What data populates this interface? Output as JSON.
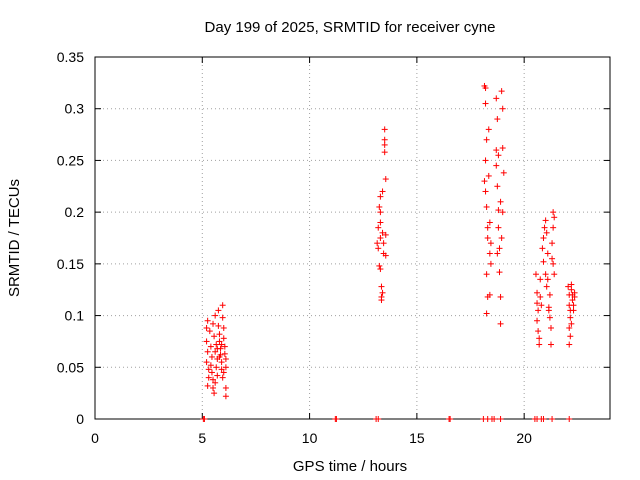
{
  "chart_data": {
    "type": "scatter",
    "title": "Day 199 of 2025, SRMTID for receiver cyne",
    "xlabel": "GPS time / hours",
    "ylabel": "SRMTID / TECUs",
    "xlim": [
      0,
      24
    ],
    "ylim": [
      0,
      0.35
    ],
    "xticks": [
      0,
      5,
      10,
      15,
      20
    ],
    "yticks": [
      0,
      0.05,
      0.1,
      0.15,
      0.2,
      0.25,
      0.3,
      0.35
    ],
    "xtick_labels": [
      "0",
      "5",
      "10",
      "15",
      "20"
    ],
    "ytick_labels": [
      "0",
      "0.05",
      "0.1",
      "0.15",
      "0.2",
      "0.25",
      "0.3",
      "0.35"
    ],
    "grid": true,
    "marker": "+",
    "color": "#ff0000",
    "series": [
      {
        "name": "SRMTID",
        "points": [
          [
            5.05,
            0
          ],
          [
            5.1,
            0
          ],
          [
            11.2,
            0
          ],
          [
            11.25,
            0
          ],
          [
            13.1,
            0
          ],
          [
            13.2,
            0
          ],
          [
            16.5,
            0
          ],
          [
            16.55,
            0
          ],
          [
            18.1,
            0
          ],
          [
            18.3,
            0
          ],
          [
            18.5,
            0
          ],
          [
            18.6,
            0
          ],
          [
            18.9,
            0
          ],
          [
            20.5,
            0
          ],
          [
            20.6,
            0
          ],
          [
            20.8,
            0
          ],
          [
            20.9,
            0
          ],
          [
            21.3,
            0
          ],
          [
            22.1,
            0
          ],
          [
            5.2,
            0.088
          ],
          [
            5.25,
            0.095
          ],
          [
            5.2,
            0.075
          ],
          [
            5.25,
            0.065
          ],
          [
            5.2,
            0.055
          ],
          [
            5.3,
            0.048
          ],
          [
            5.3,
            0.04
          ],
          [
            5.25,
            0.032
          ],
          [
            5.35,
            0.085
          ],
          [
            5.4,
            0.07
          ],
          [
            5.45,
            0.06
          ],
          [
            5.4,
            0.052
          ],
          [
            5.45,
            0.045
          ],
          [
            5.5,
            0.038
          ],
          [
            5.5,
            0.03
          ],
          [
            5.55,
            0.025
          ],
          [
            5.5,
            0.092
          ],
          [
            5.55,
            0.08
          ],
          [
            5.6,
            0.1
          ],
          [
            5.65,
            0.072
          ],
          [
            5.6,
            0.065
          ],
          [
            5.7,
            0.058
          ],
          [
            5.65,
            0.05
          ],
          [
            5.7,
            0.042
          ],
          [
            5.75,
            0.105
          ],
          [
            5.75,
            0.09
          ],
          [
            5.8,
            0.082
          ],
          [
            5.8,
            0.075
          ],
          [
            5.85,
            0.068
          ],
          [
            5.85,
            0.062
          ],
          [
            5.9,
            0.055
          ],
          [
            5.9,
            0.048
          ],
          [
            5.95,
            0.11
          ],
          [
            5.95,
            0.098
          ],
          [
            6.0,
            0.088
          ],
          [
            6.0,
            0.078
          ],
          [
            6.05,
            0.07
          ],
          [
            6.05,
            0.063
          ],
          [
            6.1,
            0.058
          ],
          [
            6.1,
            0.05
          ],
          [
            6.1,
            0.03
          ],
          [
            6.1,
            0.022
          ],
          [
            5.95,
            0.04
          ],
          [
            6.0,
            0.045
          ],
          [
            5.6,
            0.035
          ],
          [
            5.7,
            0.068
          ],
          [
            5.8,
            0.06
          ],
          [
            5.9,
            0.072
          ],
          [
            13.15,
            0.17
          ],
          [
            13.2,
            0.185
          ],
          [
            13.2,
            0.165
          ],
          [
            13.25,
            0.148
          ],
          [
            13.25,
            0.205
          ],
          [
            13.3,
            0.215
          ],
          [
            13.3,
            0.175
          ],
          [
            13.3,
            0.2
          ],
          [
            13.3,
            0.145
          ],
          [
            13.35,
            0.128
          ],
          [
            13.35,
            0.118
          ],
          [
            13.35,
            0.115
          ],
          [
            13.4,
            0.22
          ],
          [
            13.4,
            0.18
          ],
          [
            13.45,
            0.16
          ],
          [
            13.45,
            0.17
          ],
          [
            13.5,
            0.265
          ],
          [
            13.5,
            0.27
          ],
          [
            13.5,
            0.258
          ],
          [
            13.5,
            0.28
          ],
          [
            13.55,
            0.232
          ],
          [
            13.55,
            0.178
          ],
          [
            13.55,
            0.158
          ],
          [
            13.4,
            0.122
          ],
          [
            13.3,
            0.19
          ],
          [
            18.15,
            0.322
          ],
          [
            18.2,
            0.32
          ],
          [
            18.2,
            0.305
          ],
          [
            18.25,
            0.27
          ],
          [
            18.2,
            0.25
          ],
          [
            18.15,
            0.23
          ],
          [
            18.2,
            0.22
          ],
          [
            18.25,
            0.205
          ],
          [
            18.3,
            0.185
          ],
          [
            18.3,
            0.175
          ],
          [
            18.25,
            0.14
          ],
          [
            18.3,
            0.118
          ],
          [
            18.25,
            0.102
          ],
          [
            18.35,
            0.28
          ],
          [
            18.35,
            0.235
          ],
          [
            18.4,
            0.19
          ],
          [
            18.45,
            0.17
          ],
          [
            18.4,
            0.16
          ],
          [
            18.45,
            0.15
          ],
          [
            18.4,
            0.12
          ],
          [
            18.7,
            0.31
          ],
          [
            18.75,
            0.29
          ],
          [
            18.7,
            0.26
          ],
          [
            18.75,
            0.225
          ],
          [
            18.8,
            0.202
          ],
          [
            18.8,
            0.185
          ],
          [
            18.85,
            0.165
          ],
          [
            18.85,
            0.142
          ],
          [
            18.9,
            0.118
          ],
          [
            18.9,
            0.092
          ],
          [
            18.95,
            0.317
          ],
          [
            19.0,
            0.3
          ],
          [
            19.0,
            0.262
          ],
          [
            19.05,
            0.238
          ],
          [
            19.0,
            0.2
          ],
          [
            18.8,
            0.255
          ],
          [
            18.9,
            0.21
          ],
          [
            18.95,
            0.175
          ],
          [
            18.7,
            0.245
          ],
          [
            18.75,
            0.16
          ],
          [
            20.55,
            0.14
          ],
          [
            20.6,
            0.122
          ],
          [
            20.6,
            0.112
          ],
          [
            20.65,
            0.105
          ],
          [
            20.6,
            0.095
          ],
          [
            20.65,
            0.085
          ],
          [
            20.7,
            0.078
          ],
          [
            20.7,
            0.072
          ],
          [
            20.75,
            0.118
          ],
          [
            20.75,
            0.135
          ],
          [
            20.8,
            0.11
          ],
          [
            20.85,
            0.165
          ],
          [
            20.9,
            0.152
          ],
          [
            20.9,
            0.175
          ],
          [
            20.95,
            0.185
          ],
          [
            21.0,
            0.192
          ],
          [
            21.05,
            0.18
          ],
          [
            21.0,
            0.14
          ],
          [
            21.05,
            0.128
          ],
          [
            21.1,
            0.135
          ],
          [
            21.15,
            0.108
          ],
          [
            21.15,
            0.105
          ],
          [
            21.2,
            0.098
          ],
          [
            21.25,
            0.088
          ],
          [
            21.25,
            0.072
          ],
          [
            21.3,
            0.155
          ],
          [
            21.3,
            0.17
          ],
          [
            21.35,
            0.185
          ],
          [
            21.35,
            0.2
          ],
          [
            21.4,
            0.195
          ],
          [
            21.35,
            0.15
          ],
          [
            21.4,
            0.14
          ],
          [
            21.2,
            0.12
          ],
          [
            21.1,
            0.16
          ],
          [
            22.05,
            0.128
          ],
          [
            22.1,
            0.12
          ],
          [
            22.1,
            0.11
          ],
          [
            22.15,
            0.105
          ],
          [
            22.15,
            0.098
          ],
          [
            22.1,
            0.088
          ],
          [
            22.15,
            0.08
          ],
          [
            22.1,
            0.072
          ],
          [
            22.2,
            0.13
          ],
          [
            22.2,
            0.125
          ],
          [
            22.25,
            0.12
          ],
          [
            22.25,
            0.115
          ],
          [
            22.3,
            0.11
          ],
          [
            22.3,
            0.105
          ],
          [
            22.35,
            0.122
          ],
          [
            22.35,
            0.118
          ],
          [
            22.2,
            0.092
          ]
        ]
      }
    ]
  }
}
